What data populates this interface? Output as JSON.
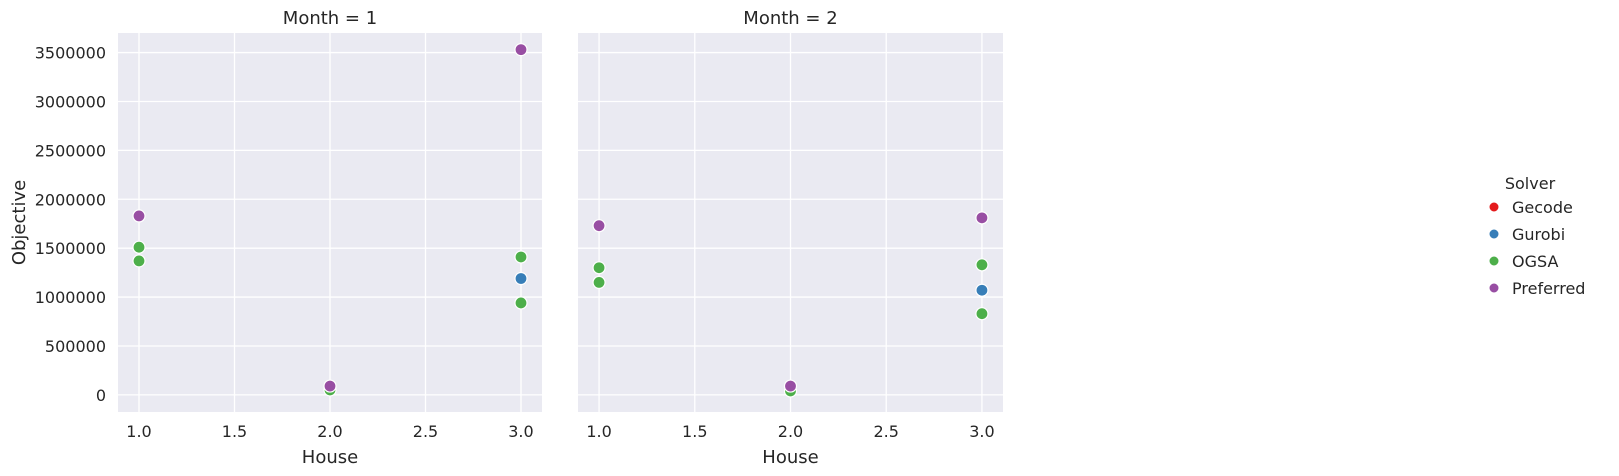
{
  "chart_data": [
    {
      "type": "scatter",
      "title": "Month = 1",
      "xlabel": "House",
      "ylabel": "Objective",
      "xlim": [
        0.89,
        3.11
      ],
      "ylim": [
        -175000,
        3700000
      ],
      "xticks": [
        "1.0",
        "1.5",
        "2.0",
        "2.5",
        "3.0"
      ],
      "yticks": [
        "0",
        "500000",
        "1000000",
        "1500000",
        "2000000",
        "2500000",
        "3000000",
        "3500000"
      ],
      "grid": true,
      "series": [
        {
          "name": "Gecode",
          "color": "#e41a1c",
          "points": []
        },
        {
          "name": "Gurobi",
          "color": "#377eb8",
          "points": [
            [
              3.0,
              1190000
            ]
          ]
        },
        {
          "name": "OGSA",
          "color": "#4daf4a",
          "points": [
            [
              1.0,
              1510000
            ],
            [
              1.0,
              1370000
            ],
            [
              2.0,
              50000
            ],
            [
              3.0,
              1410000
            ],
            [
              3.0,
              940000
            ]
          ]
        },
        {
          "name": "Preferred",
          "color": "#984ea3",
          "points": [
            [
              1.0,
              1830000
            ],
            [
              2.0,
              90000
            ],
            [
              3.0,
              3530000
            ]
          ]
        }
      ]
    },
    {
      "type": "scatter",
      "title": "Month = 2",
      "xlabel": "House",
      "ylabel": "",
      "xlim": [
        0.89,
        3.11
      ],
      "ylim": [
        -175000,
        3700000
      ],
      "xticks": [
        "1.0",
        "1.5",
        "2.0",
        "2.5",
        "3.0"
      ],
      "yticks": [],
      "grid": true,
      "series": [
        {
          "name": "Gecode",
          "color": "#e41a1c",
          "points": []
        },
        {
          "name": "Gurobi",
          "color": "#377eb8",
          "points": [
            [
              3.0,
              1070000
            ]
          ]
        },
        {
          "name": "OGSA",
          "color": "#4daf4a",
          "points": [
            [
              1.0,
              1300000
            ],
            [
              1.0,
              1150000
            ],
            [
              2.0,
              40000
            ],
            [
              3.0,
              1330000
            ],
            [
              3.0,
              830000
            ]
          ]
        },
        {
          "name": "Preferred",
          "color": "#984ea3",
          "points": [
            [
              1.0,
              1730000
            ],
            [
              2.0,
              90000
            ],
            [
              3.0,
              1810000
            ]
          ]
        }
      ]
    }
  ],
  "legend": {
    "title": "Solver",
    "placement": "right",
    "items": [
      {
        "label": "Gecode",
        "color": "#e41a1c"
      },
      {
        "label": "Gurobi",
        "color": "#377eb8"
      },
      {
        "label": "OGSA",
        "color": "#4daf4a"
      },
      {
        "label": "Preferred",
        "color": "#984ea3"
      }
    ]
  }
}
